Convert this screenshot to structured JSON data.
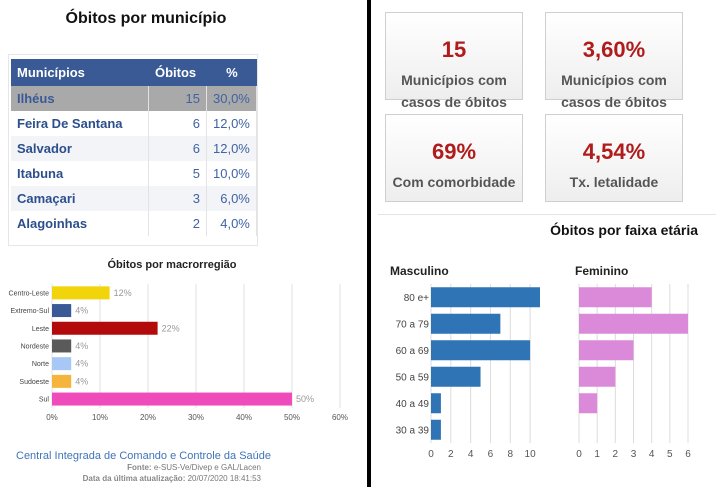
{
  "municipios": {
    "title": "Óbitos por município",
    "columns": [
      "Municípios",
      "Óbitos",
      "%"
    ],
    "rows": [
      {
        "name": "Ilhéus",
        "obitos": "15",
        "pct": "30,0%"
      },
      {
        "name": "Feira De Santana",
        "obitos": "6",
        "pct": "12,0%"
      },
      {
        "name": "Salvador",
        "obitos": "6",
        "pct": "12,0%"
      },
      {
        "name": "Itabuna",
        "obitos": "5",
        "pct": "10,0%"
      },
      {
        "name": "Camaçari",
        "obitos": "3",
        "pct": "6,0%"
      },
      {
        "name": "Alagoinhas",
        "obitos": "2",
        "pct": "4,0%"
      }
    ]
  },
  "cards": [
    {
      "value": "15",
      "label": "Municípios com casos de óbitos"
    },
    {
      "value": "3,60%",
      "label": "Municípios com casos de óbitos"
    },
    {
      "value": "69%",
      "label": "Com comorbidade"
    },
    {
      "value": "4,54%",
      "label": "Tx. letalidade"
    }
  ],
  "footer": {
    "link": "Central Integrada de Comando e Controle da Saúde",
    "source_label": "Fonte:",
    "source": "e-SUS-Ve/Divep e GAL/Lacen",
    "update_label": "Data da última atualização:",
    "update": "20/07/2020 18:41:53"
  },
  "chart_data": [
    {
      "type": "bar",
      "orientation": "horizontal",
      "title": "Óbitos por macrorregião",
      "categories": [
        "Centro-Leste",
        "Extremo-Sul",
        "Leste",
        "Nordeste",
        "Norte",
        "Sudoeste",
        "Sul"
      ],
      "values": [
        12,
        4,
        22,
        4,
        4,
        4,
        50
      ],
      "value_labels": [
        "12%",
        "4%",
        "22%",
        "4%",
        "4%",
        "4%",
        "50%"
      ],
      "colors": [
        "#f2d40b",
        "#3a5a96",
        "#b30b0b",
        "#5a5a5a",
        "#a7c8f5",
        "#f5b43d",
        "#f04bbb"
      ],
      "xlim": [
        0,
        60
      ],
      "xticks": [
        "0%",
        "10%",
        "20%",
        "30%",
        "40%",
        "50%",
        "60%"
      ],
      "grid": true
    },
    {
      "type": "bar",
      "orientation": "horizontal",
      "title": "Óbitos por faixa etária",
      "categories": [
        "80 e+",
        "70 a 79",
        "60 a 69",
        "50 a 59",
        "40 a 49",
        "30 a 39"
      ],
      "series": [
        {
          "name": "Masculino",
          "values": [
            11,
            7,
            10,
            5,
            1,
            1
          ],
          "color": "#2f74b5",
          "xlim": [
            0,
            11
          ],
          "xticks": [
            "0",
            "2",
            "4",
            "6",
            "8",
            "10"
          ]
        },
        {
          "name": "Feminino",
          "values": [
            4,
            6,
            3,
            2,
            1,
            0
          ],
          "color": "#da8ad8",
          "xlim": [
            0,
            6
          ],
          "xticks": [
            "0",
            "1",
            "2",
            "3",
            "4",
            "5",
            "6"
          ]
        }
      ],
      "grid": true
    }
  ]
}
